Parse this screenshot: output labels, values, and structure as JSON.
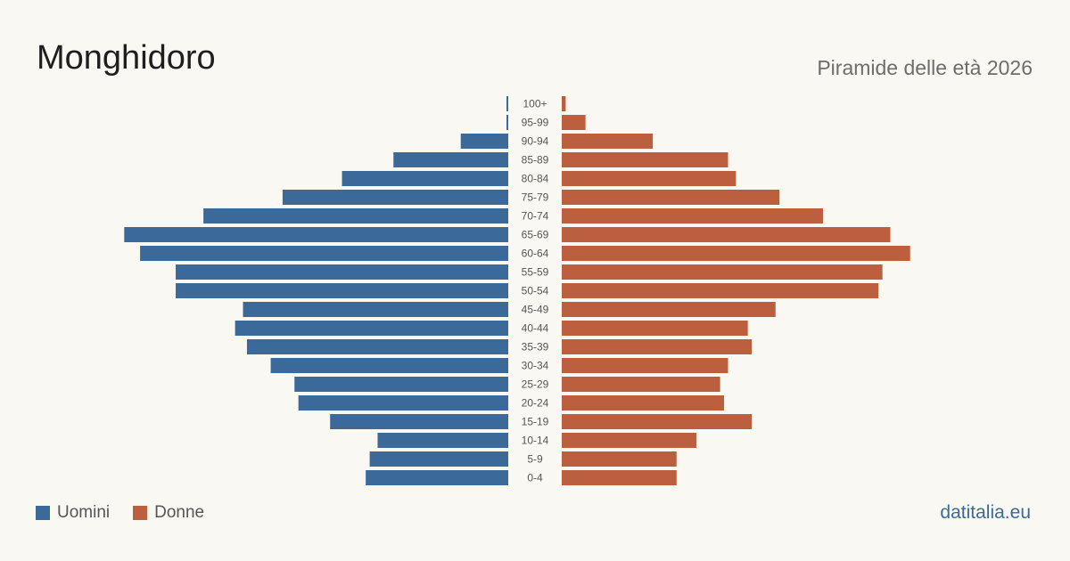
{
  "header": {
    "title": "Monghidoro",
    "subtitle": "Piramide delle età 2026"
  },
  "legend": {
    "men_label": "Uomini",
    "women_label": "Donne"
  },
  "footer": {
    "source": "datitalia.eu"
  },
  "colors": {
    "men": "#3b6a9a",
    "women": "#bb5f3f",
    "background": "#faf8f3",
    "age_label": "#555555"
  },
  "chart_data": {
    "type": "bar",
    "orientation": "horizontal",
    "layout": "population-pyramid",
    "categories": [
      "100+",
      "95-99",
      "90-94",
      "85-89",
      "80-84",
      "75-79",
      "70-74",
      "65-69",
      "60-64",
      "55-59",
      "50-54",
      "45-49",
      "40-44",
      "35-39",
      "30-34",
      "25-29",
      "20-24",
      "15-19",
      "10-14",
      "5-9",
      "0-4"
    ],
    "series": [
      {
        "name": "Uomini",
        "values": [
          0,
          0,
          12,
          29,
          42,
          57,
          77,
          97,
          93,
          84,
          84,
          67,
          69,
          66,
          60,
          54,
          53,
          45,
          33,
          35,
          36
        ]
      },
      {
        "name": "Donne",
        "values": [
          1,
          6,
          23,
          42,
          44,
          55,
          66,
          83,
          88,
          81,
          80,
          54,
          47,
          48,
          42,
          40,
          41,
          48,
          34,
          29,
          29
        ]
      }
    ],
    "xlim": [
      0,
      100
    ]
  }
}
